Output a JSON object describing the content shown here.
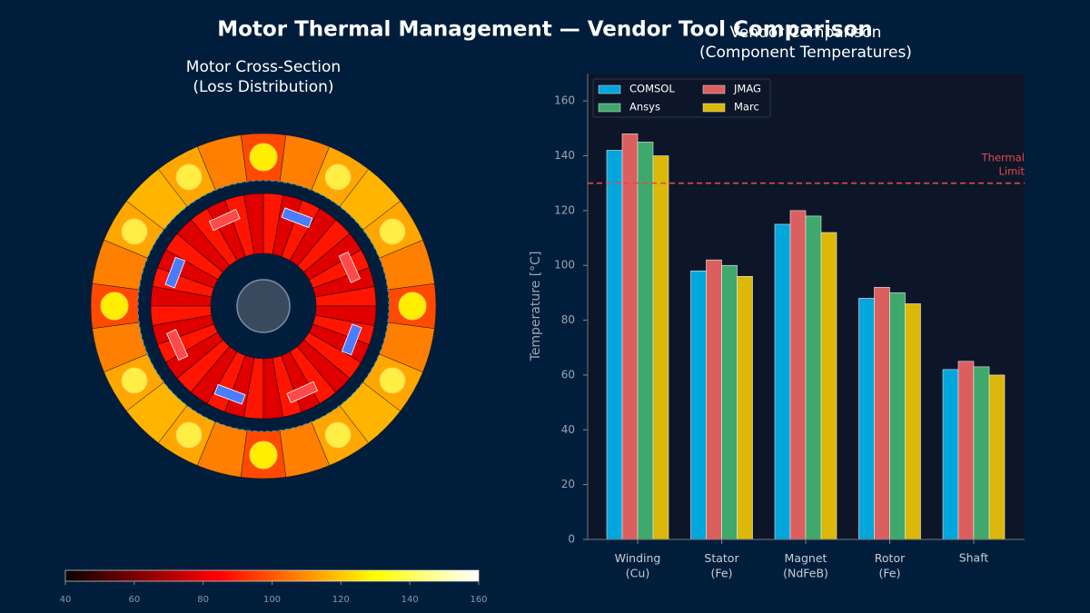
{
  "title": "Motor Thermal Management — Vendor Tool Comparison",
  "chart_data": [
    {
      "type": "motor-section",
      "title": "Motor Cross-Section\n(Loss Distribution)",
      "colorbar": {
        "colormap": "hot",
        "lim": [
          40,
          160
        ],
        "ticks": [
          40,
          60,
          80,
          100,
          120,
          140,
          160
        ]
      }
    },
    {
      "type": "bar",
      "title": "Vendor Comparison\n(Component Temperatures)",
      "y_label": "Temperature [°C]",
      "categories": [
        "Winding\n(Cu)",
        "Stator\n(Fe)",
        "Magnet\n(NdFeB)",
        "Rotor\n(Fe)",
        "Shaft"
      ],
      "series": [
        {
          "name": "COMSOL",
          "color": "#00a6dc",
          "values": [
            142,
            98,
            115,
            88,
            62
          ]
        },
        {
          "name": "JMAG",
          "color": "#dc5f5f",
          "values": [
            148,
            102,
            120,
            92,
            65
          ]
        },
        {
          "name": "Ansys",
          "color": "#3fa86c",
          "values": [
            145,
            100,
            118,
            90,
            63
          ]
        },
        {
          "name": "Marc",
          "color": "#dcb808",
          "values": [
            140,
            96,
            112,
            86,
            60
          ]
        }
      ],
      "ylim": [
        0,
        170
      ],
      "yticks": [
        0,
        20,
        40,
        60,
        80,
        100,
        120,
        140,
        160
      ],
      "threshold": {
        "value": 130,
        "label": "Thermal\nLimit",
        "color": "#e04a4a"
      },
      "legend": "upper left",
      "grid": false
    }
  ]
}
